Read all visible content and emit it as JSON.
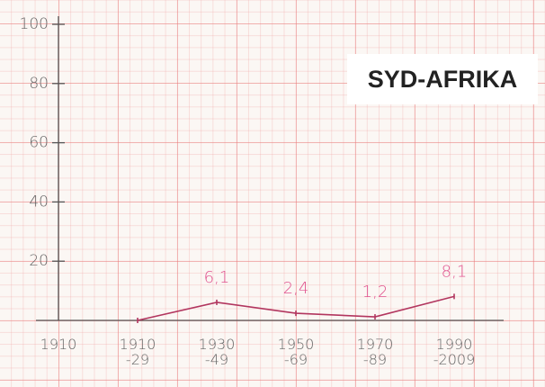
{
  "chart_data": {
    "type": "line",
    "title": "SYD-AFRIKA",
    "categories": [
      "1910",
      "1910\n-29",
      "1930\n-49",
      "1950\n-69",
      "1970\n-89",
      "1990\n-2009"
    ],
    "values": [
      null,
      0,
      6.1,
      2.4,
      1.2,
      8.1
    ],
    "value_labels": [
      null,
      null,
      "6,1",
      "2,4",
      "1,2",
      "8,1"
    ],
    "color": "#b2365f",
    "label_color": "#e0528e",
    "ylim": [
      0,
      100
    ],
    "yticks": [
      20,
      40,
      60,
      80,
      100
    ],
    "grid": false
  }
}
